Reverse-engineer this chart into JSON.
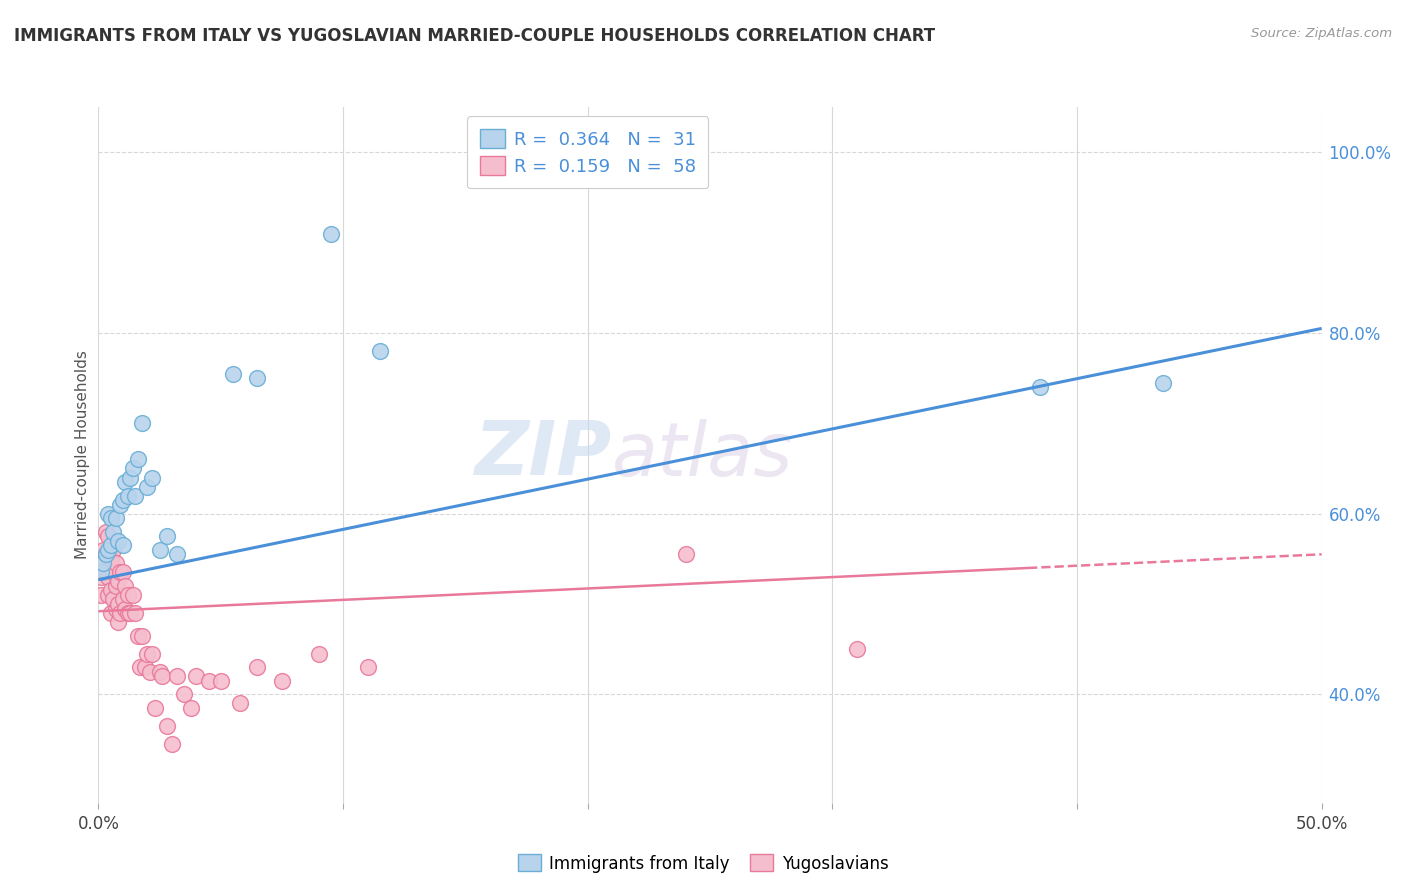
{
  "title": "IMMIGRANTS FROM ITALY VS YUGOSLAVIAN MARRIED-COUPLE HOUSEHOLDS CORRELATION CHART",
  "source": "Source: ZipAtlas.com",
  "ylabel": "Married-couple Households",
  "legend_italy": "Immigrants from Italy",
  "legend_yugo": "Yugoslavians",
  "legend_r_italy": "0.364",
  "legend_n_italy": "31",
  "legend_r_yugo": "0.159",
  "legend_n_yugo": "58",
  "italy_color": "#b8d4ed",
  "italy_edge_color": "#6aaed6",
  "yugo_color": "#f5bece",
  "yugo_edge_color": "#e8799a",
  "italy_line_color": "#4a90d9",
  "yugo_line_color": "#e8799a",
  "watermark_zip": "ZIP",
  "watermark_atlas": "atlas",
  "xlim": [
    0.0,
    0.5
  ],
  "ylim": [
    0.28,
    1.05
  ],
  "italy_scatter_x": [
    0.001,
    0.002,
    0.003,
    0.004,
    0.004,
    0.005,
    0.005,
    0.006,
    0.007,
    0.008,
    0.009,
    0.01,
    0.01,
    0.011,
    0.012,
    0.013,
    0.014,
    0.015,
    0.016,
    0.018,
    0.02,
    0.022,
    0.025,
    0.028,
    0.032,
    0.055,
    0.065,
    0.095,
    0.115,
    0.385,
    0.435
  ],
  "italy_scatter_y": [
    0.535,
    0.545,
    0.555,
    0.56,
    0.6,
    0.565,
    0.595,
    0.58,
    0.595,
    0.57,
    0.61,
    0.565,
    0.615,
    0.635,
    0.62,
    0.64,
    0.65,
    0.62,
    0.66,
    0.7,
    0.63,
    0.64,
    0.56,
    0.575,
    0.555,
    0.755,
    0.75,
    0.91,
    0.78,
    0.74,
    0.745
  ],
  "yugo_scatter_x": [
    0.001,
    0.001,
    0.002,
    0.002,
    0.003,
    0.003,
    0.003,
    0.004,
    0.004,
    0.004,
    0.005,
    0.005,
    0.005,
    0.006,
    0.006,
    0.006,
    0.007,
    0.007,
    0.007,
    0.008,
    0.008,
    0.008,
    0.009,
    0.009,
    0.01,
    0.01,
    0.011,
    0.011,
    0.012,
    0.012,
    0.013,
    0.014,
    0.015,
    0.016,
    0.017,
    0.018,
    0.019,
    0.02,
    0.021,
    0.022,
    0.023,
    0.025,
    0.026,
    0.028,
    0.03,
    0.032,
    0.035,
    0.038,
    0.04,
    0.045,
    0.05,
    0.058,
    0.065,
    0.075,
    0.09,
    0.11,
    0.24,
    0.31
  ],
  "yugo_scatter_y": [
    0.53,
    0.51,
    0.545,
    0.56,
    0.535,
    0.555,
    0.58,
    0.51,
    0.53,
    0.575,
    0.515,
    0.55,
    0.49,
    0.505,
    0.535,
    0.56,
    0.495,
    0.52,
    0.545,
    0.5,
    0.525,
    0.48,
    0.535,
    0.49,
    0.505,
    0.535,
    0.495,
    0.52,
    0.49,
    0.51,
    0.49,
    0.51,
    0.49,
    0.465,
    0.43,
    0.465,
    0.43,
    0.445,
    0.425,
    0.445,
    0.385,
    0.425,
    0.42,
    0.365,
    0.345,
    0.42,
    0.4,
    0.385,
    0.42,
    0.415,
    0.415,
    0.39,
    0.43,
    0.415,
    0.445,
    0.43,
    0.555,
    0.45
  ],
  "italy_line_x": [
    0.0,
    0.5
  ],
  "italy_line_y": [
    0.527,
    0.805
  ],
  "yugo_line_x": [
    0.0,
    0.5
  ],
  "yugo_line_y": [
    0.492,
    0.555
  ],
  "ytick_vals": [
    0.4,
    0.6,
    0.8,
    1.0
  ],
  "ytick_labels": [
    "40.0%",
    "60.0%",
    "80.0%",
    "100.0%"
  ],
  "xtick_vals": [
    0.0,
    0.1,
    0.2,
    0.3,
    0.4,
    0.5
  ],
  "background_color": "#ffffff",
  "grid_color": "#d8d8d8"
}
